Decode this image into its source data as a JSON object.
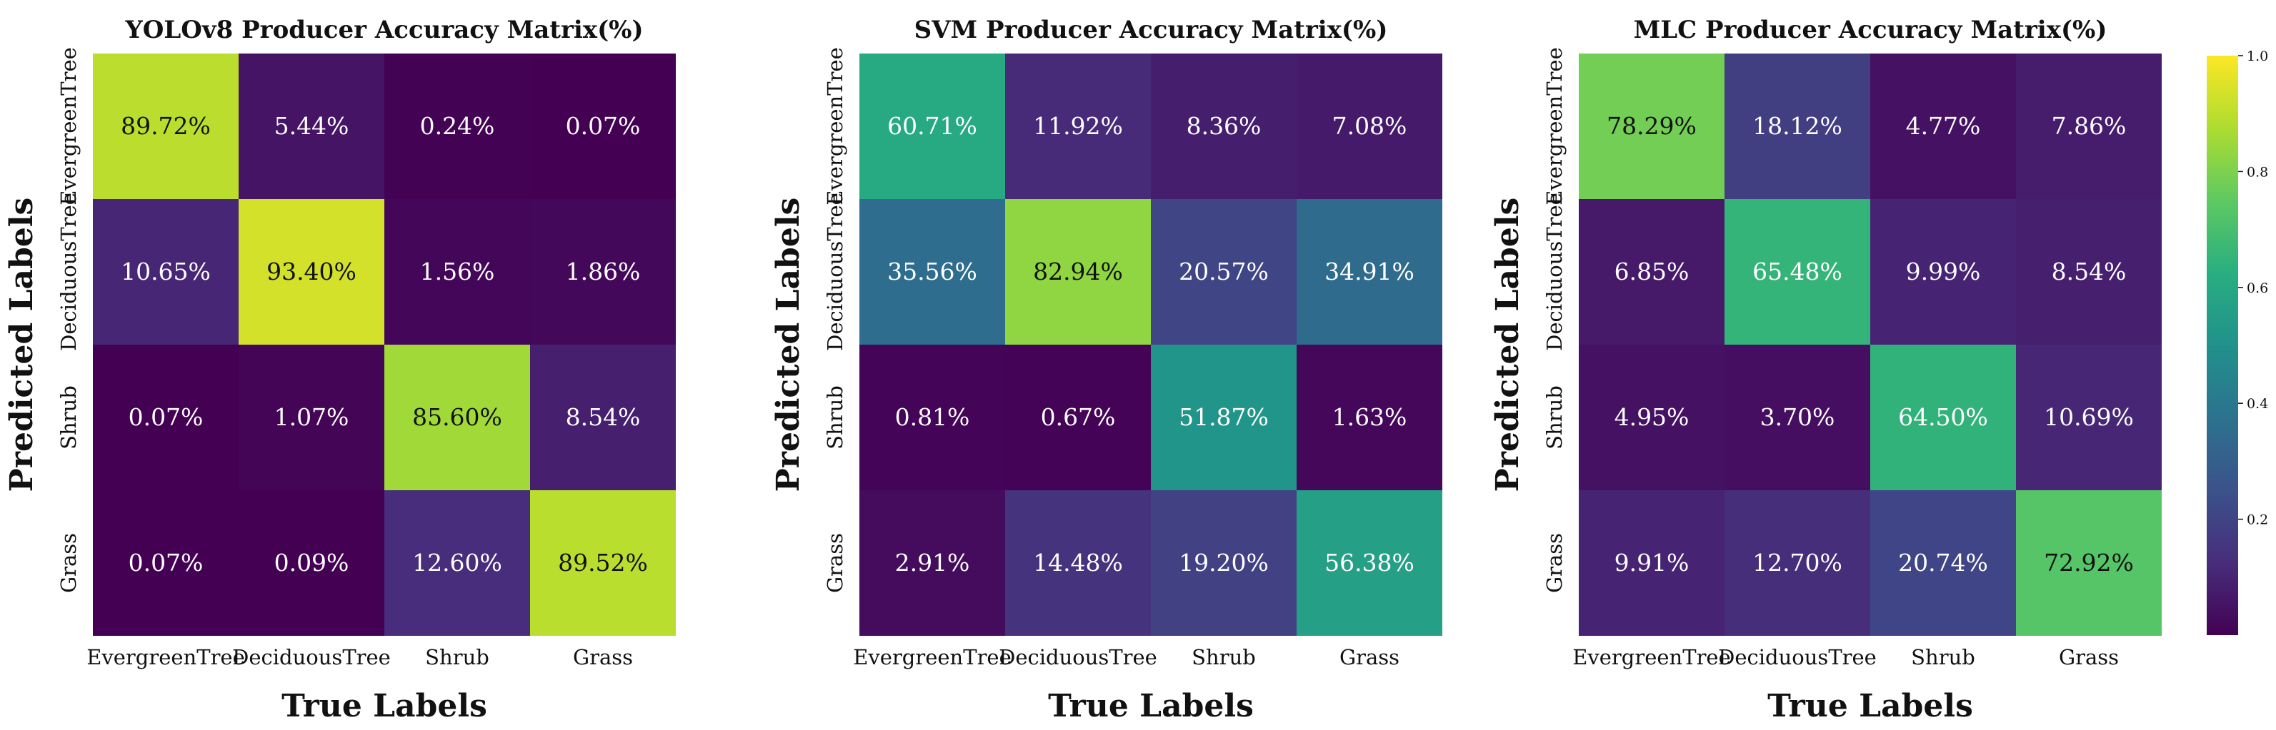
{
  "chart_data": [
    {
      "type": "heatmap",
      "title": "YOLOv8 Producer Accuracy Matrix(%)",
      "xlabel": "True Labels",
      "ylabel": "Predicted Labels",
      "x_categories": [
        "EvergreenTree",
        "DeciduousTree",
        "Shrub",
        "Grass"
      ],
      "y_categories": [
        "EvergreenTree",
        "DeciduousTree",
        "Shrub",
        "Grass"
      ],
      "values": [
        [
          89.72,
          5.44,
          0.24,
          0.07
        ],
        [
          10.65,
          93.4,
          1.56,
          1.86
        ],
        [
          0.07,
          1.07,
          85.6,
          8.54
        ],
        [
          0.07,
          0.09,
          12.6,
          89.52
        ]
      ],
      "cell_labels": [
        [
          "89.72%",
          "5.44%",
          "0.24%",
          "0.07%"
        ],
        [
          "10.65%",
          "93.40%",
          "1.56%",
          "1.86%"
        ],
        [
          "0.07%",
          "1.07%",
          "85.60%",
          "8.54%"
        ],
        [
          "0.07%",
          "0.09%",
          "12.60%",
          "89.52%"
        ]
      ],
      "colormap": "viridis",
      "color_range": [
        0,
        1
      ]
    },
    {
      "type": "heatmap",
      "title": "SVM Producer Accuracy Matrix(%)",
      "xlabel": "True Labels",
      "ylabel": "Predicted Labels",
      "x_categories": [
        "EvergreenTree",
        "DeciduousTree",
        "Shrub",
        "Grass"
      ],
      "y_categories": [
        "EvergreenTree",
        "DeciduousTree",
        "Shrub",
        "Grass"
      ],
      "values": [
        [
          60.71,
          11.92,
          8.36,
          7.08
        ],
        [
          35.56,
          82.94,
          20.57,
          34.91
        ],
        [
          0.81,
          0.67,
          51.87,
          1.63
        ],
        [
          2.91,
          14.48,
          19.2,
          56.38
        ]
      ],
      "cell_labels": [
        [
          "60.71%",
          "11.92%",
          "8.36%",
          "7.08%"
        ],
        [
          "35.56%",
          "82.94%",
          "20.57%",
          "34.91%"
        ],
        [
          "0.81%",
          "0.67%",
          "51.87%",
          "1.63%"
        ],
        [
          "2.91%",
          "14.48%",
          "19.20%",
          "56.38%"
        ]
      ],
      "colormap": "viridis",
      "color_range": [
        0,
        1
      ]
    },
    {
      "type": "heatmap",
      "title": "MLC Producer Accuracy Matrix(%)",
      "xlabel": "True Labels",
      "ylabel": "Predicted Labels",
      "x_categories": [
        "EvergreenTree",
        "DeciduousTree",
        "Shrub",
        "Grass"
      ],
      "y_categories": [
        "EvergreenTree",
        "DeciduousTree",
        "Shrub",
        "Grass"
      ],
      "values": [
        [
          78.29,
          18.12,
          4.77,
          7.86
        ],
        [
          6.85,
          65.48,
          9.99,
          8.54
        ],
        [
          4.95,
          3.7,
          64.5,
          10.69
        ],
        [
          9.91,
          12.7,
          20.74,
          72.92
        ]
      ],
      "cell_labels": [
        [
          "78.29%",
          "18.12%",
          "4.77%",
          "7.86%"
        ],
        [
          "6.85%",
          "65.48%",
          "9.99%",
          "8.54%"
        ],
        [
          "4.95%",
          "3.70%",
          "64.50%",
          "10.69%"
        ],
        [
          "9.91%",
          "12.70%",
          "20.74%",
          "72.92%"
        ]
      ],
      "colormap": "viridis",
      "color_range": [
        0,
        1
      ],
      "colorbar": {
        "ticks": [
          0.2,
          0.4,
          0.6,
          0.8,
          1.0
        ],
        "tick_labels": [
          "0.2",
          "0.4",
          "0.6",
          "0.8",
          "1.0"
        ]
      }
    }
  ]
}
